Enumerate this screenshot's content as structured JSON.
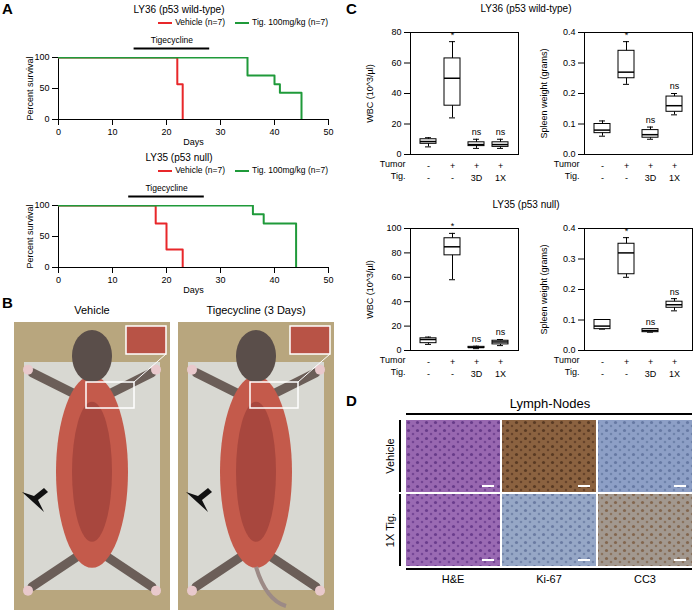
{
  "chart_data": [
    {
      "type": "line",
      "title": "LY36 (p53 wild-type)",
      "x_label": "Days",
      "y_label": "Percent survival",
      "xlim": [
        0,
        50
      ],
      "xticks": [
        0,
        10,
        20,
        30,
        40,
        50
      ],
      "ylim": [
        0,
        100
      ],
      "yticks": [
        0,
        50,
        100
      ],
      "line_style": "step",
      "legend": "top-right",
      "annotations": [
        {
          "text": "Tigecycline",
          "x_start": 14,
          "x_end": 28
        }
      ],
      "series": [
        {
          "name": "Vehicle (n=7)",
          "color": "#e8272a",
          "x": [
            0,
            22,
            23
          ],
          "values": [
            100,
            57,
            0
          ]
        },
        {
          "name": "Tig. 100mg/kg (n=7)",
          "color": "#1f9a3a",
          "x": [
            0,
            35,
            40,
            41,
            45
          ],
          "values": [
            100,
            71,
            57,
            43,
            0
          ]
        }
      ]
    },
    {
      "type": "line",
      "title": "LY35 (p53 null)",
      "x_label": "Days",
      "y_label": "Percent survival",
      "xlim": [
        0,
        50
      ],
      "xticks": [
        0,
        10,
        20,
        30,
        40,
        50
      ],
      "ylim": [
        0,
        100
      ],
      "yticks": [
        0,
        50,
        100
      ],
      "line_style": "step",
      "legend": "top-right",
      "annotations": [
        {
          "text": "Tigecycline",
          "x_start": 13,
          "x_end": 27
        }
      ],
      "series": [
        {
          "name": "Vehicle (n=7)",
          "color": "#e8272a",
          "x": [
            0,
            18,
            20,
            23
          ],
          "values": [
            100,
            71,
            29,
            0
          ]
        },
        {
          "name": "Tig. 100mg/kg (n=7)",
          "color": "#1f9a3a",
          "x": [
            0,
            36,
            38,
            44
          ],
          "values": [
            100,
            86,
            71,
            0
          ]
        }
      ]
    },
    {
      "type": "box",
      "y_label": "WBC (10^3/µl)",
      "ylim": [
        0,
        80
      ],
      "yticks": [
        0,
        20,
        40,
        60,
        80
      ],
      "color": "#000000",
      "x_rows": [
        {
          "label": "Tumor",
          "values": [
            "-",
            "+",
            "+",
            "+"
          ]
        },
        {
          "label": "Tig.",
          "values": [
            "-",
            "-",
            "3D",
            "1X"
          ]
        }
      ],
      "boxes": [
        {
          "min": 5,
          "q1": 7,
          "median": 8.5,
          "q3": 10,
          "max": 11
        },
        {
          "min": 24,
          "q1": 32,
          "median": 50,
          "q3": 63,
          "max": 74
        },
        {
          "min": 4,
          "q1": 5.5,
          "median": 6.5,
          "q3": 8,
          "max": 10
        },
        {
          "min": 4,
          "q1": 5,
          "median": 6.5,
          "q3": 8,
          "max": 10
        }
      ],
      "labels": [
        null,
        "*",
        "ns",
        "ns"
      ]
    },
    {
      "type": "box",
      "y_label": "Spleen weight (grams)",
      "ylim": [
        0,
        0.4
      ],
      "yticks": [
        {
          "value": 0,
          "label": "0.0"
        },
        0.1,
        0.2,
        0.3,
        0.4
      ],
      "color": "#000000",
      "x_rows": [
        {
          "label": "Tumor",
          "values": [
            "-",
            "+",
            "+",
            "+"
          ]
        },
        {
          "label": "Tig.",
          "values": [
            "-",
            "-",
            "3D",
            "1X"
          ]
        }
      ],
      "boxes": [
        {
          "min": 0.06,
          "q1": 0.07,
          "median": 0.08,
          "q3": 0.1,
          "max": 0.11
        },
        {
          "min": 0.23,
          "q1": 0.25,
          "median": 0.27,
          "q3": 0.34,
          "max": 0.37
        },
        {
          "min": 0.05,
          "q1": 0.055,
          "median": 0.065,
          "q3": 0.08,
          "max": 0.09
        },
        {
          "min": 0.13,
          "q1": 0.14,
          "median": 0.16,
          "q3": 0.19,
          "max": 0.2
        }
      ],
      "labels": [
        null,
        "*",
        "ns",
        "ns"
      ]
    },
    {
      "type": "box",
      "y_label": "WBC (10^3/µl)",
      "ylim": [
        0,
        100
      ],
      "yticks": [
        0,
        20,
        40,
        60,
        80,
        100
      ],
      "color": "#000000",
      "x_rows": [
        {
          "label": "Tumor",
          "values": [
            "-",
            "+",
            "+",
            "+"
          ]
        },
        {
          "label": "Tig.",
          "values": [
            "-",
            "-",
            "3D",
            "1X"
          ]
        }
      ],
      "boxes": [
        {
          "min": 5,
          "q1": 6,
          "median": 9,
          "q3": 10,
          "max": 11
        },
        {
          "min": 58,
          "q1": 78,
          "median": 85,
          "q3": 92,
          "max": 96
        },
        {
          "min": 1.5,
          "q1": 2,
          "median": 2.5,
          "q3": 3,
          "max": 3.5
        },
        {
          "min": 4,
          "q1": 5,
          "median": 7,
          "q3": 8,
          "max": 9
        }
      ],
      "labels": [
        null,
        "*",
        "ns",
        "ns"
      ]
    },
    {
      "type": "box",
      "y_label": "Spleen weight (grams)",
      "ylim": [
        0,
        0.4
      ],
      "yticks": [
        {
          "value": 0,
          "label": "0.0"
        },
        0.1,
        0.2,
        0.3,
        0.4
      ],
      "color": "#000000",
      "x_rows": [
        {
          "label": "Tumor",
          "values": [
            "-",
            "+",
            "+",
            "+"
          ]
        },
        {
          "label": "Tig.",
          "values": [
            "-",
            "-",
            "3D",
            "1X"
          ]
        }
      ],
      "boxes": [
        {
          "min": 0.07,
          "q1": 0.07,
          "median": 0.08,
          "q3": 0.1,
          "max": 0.1
        },
        {
          "min": 0.24,
          "q1": 0.25,
          "median": 0.32,
          "q3": 0.35,
          "max": 0.37
        },
        {
          "min": 0.06,
          "q1": 0.06,
          "median": 0.065,
          "q3": 0.07,
          "max": 0.07
        },
        {
          "min": 0.13,
          "q1": 0.14,
          "median": 0.15,
          "q3": 0.16,
          "max": 0.17
        }
      ],
      "labels": [
        null,
        "*",
        "ns",
        "ns"
      ]
    }
  ],
  "figure": {
    "panel_letters": [
      "A",
      "B",
      "C",
      "D"
    ],
    "panel_b": {
      "labels": [
        "Vehicle",
        "Tigecycline (3 Days)"
      ]
    },
    "panel_c": {
      "titles": [
        "LY36 (p53 wild-type)",
        "LY35 (p53 null)"
      ]
    },
    "panel_d": {
      "title": "Lymph-Nodes",
      "rows": [
        "Vehicle",
        "1X Tig."
      ],
      "columns": [
        "H&E",
        "Ki-67",
        "CC3"
      ]
    }
  }
}
